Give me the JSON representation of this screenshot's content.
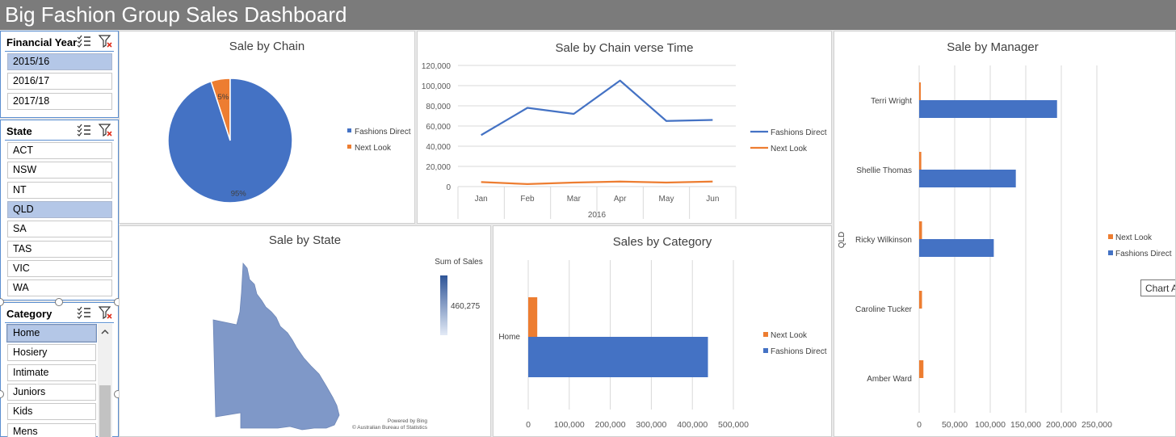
{
  "app": {
    "title": "Big Fashion Group Sales Dashboard"
  },
  "colors": {
    "fashions_direct": "#4472c4",
    "next_look": "#ed7d31",
    "title_bar": "#7b7b7b",
    "selected": "#b4c7e7"
  },
  "slicers": {
    "financial_year": {
      "title": "Financial Year",
      "items": [
        "2015/16",
        "2016/17",
        "2017/18"
      ],
      "selected": [
        "2015/16"
      ]
    },
    "state": {
      "title": "State",
      "items": [
        "ACT",
        "NSW",
        "NT",
        "QLD",
        "SA",
        "TAS",
        "VIC",
        "WA"
      ],
      "selected": [
        "QLD"
      ]
    },
    "category": {
      "title": "Category",
      "items": [
        "Home",
        "Hosiery",
        "Intimate",
        "Juniors",
        "Kids",
        "Mens"
      ],
      "selected": [
        "Home"
      ]
    }
  },
  "charts": {
    "pie": {
      "title": "Sale by Chain",
      "legend": [
        "Fashions Direct",
        "Next Look"
      ]
    },
    "line": {
      "title": "Sale by Chain verse Time",
      "legend": [
        "Fashions Direct",
        "Next Look"
      ]
    },
    "map": {
      "title": "Sale by State",
      "legend_title": "Sum of Sales",
      "legend_value": "460,275",
      "credit1": "Powered by Bing",
      "credit2": "© Australian Bureau of Statistics"
    },
    "category": {
      "title": "Sales by Category",
      "legend": [
        "Next Look",
        "Fashions Direct"
      ]
    },
    "manager": {
      "title": "Sale by Manager",
      "legend": [
        "Next Look",
        "Fashions Direct"
      ],
      "tooltip": "Chart Ar"
    }
  },
  "chart_data": [
    {
      "type": "pie",
      "title": "Sale by Chain",
      "series": [
        {
          "name": "Fashions Direct",
          "value": 95,
          "label": "95%"
        },
        {
          "name": "Next Look",
          "value": 5,
          "label": "5%"
        }
      ],
      "legend": "right"
    },
    {
      "type": "line",
      "title": "Sale by Chain verse Time",
      "x": [
        "Jan",
        "Feb",
        "Mar",
        "Apr",
        "May",
        "Jun"
      ],
      "xlabel": "2016",
      "ylim": [
        0,
        120000
      ],
      "yticks": [
        0,
        20000,
        40000,
        60000,
        80000,
        100000,
        120000
      ],
      "ytick_labels": [
        "0",
        "20,000",
        "40,000",
        "60,000",
        "80,000",
        "100,000",
        "120,000"
      ],
      "series": [
        {
          "name": "Fashions Direct",
          "values": [
            51000,
            78000,
            72000,
            105000,
            65000,
            66000
          ]
        },
        {
          "name": "Next Look",
          "values": [
            4500,
            2500,
            4000,
            5000,
            4000,
            5000
          ]
        }
      ],
      "grid": true,
      "legend": "right"
    },
    {
      "type": "bar",
      "orientation": "horizontal",
      "title": "Sales by Category",
      "categories": [
        "Home"
      ],
      "xlim": [
        0,
        500000
      ],
      "xticks": [
        0,
        100000,
        200000,
        300000,
        400000,
        500000
      ],
      "xtick_labels": [
        "0",
        "100,000",
        "200,000",
        "300,000",
        "400,000",
        "500,000"
      ],
      "series": [
        {
          "name": "Next Look",
          "values": [
            22000
          ]
        },
        {
          "name": "Fashions Direct",
          "values": [
            438000
          ]
        }
      ],
      "grid": true,
      "legend": "right"
    },
    {
      "type": "bar",
      "orientation": "horizontal",
      "title": "Sale by Manager",
      "group_label": "QLD",
      "categories": [
        "Terri Wright",
        "Shellie Thomas",
        "Ricky Wilkinson",
        "Caroline Tucker",
        "Amber Ward"
      ],
      "xlim": [
        0,
        250000
      ],
      "xticks": [
        0,
        50000,
        100000,
        150000,
        200000,
        250000
      ],
      "xtick_labels": [
        "0",
        "50,000",
        "100,000",
        "150,000",
        "200,000",
        "250,000"
      ],
      "series": [
        {
          "name": "Next Look",
          "values": [
            2000,
            3000,
            4000,
            4000,
            6000
          ]
        },
        {
          "name": "Fashions Direct",
          "values": [
            194000,
            136000,
            105000,
            0,
            0
          ]
        }
      ],
      "grid": true,
      "legend": "right"
    }
  ]
}
